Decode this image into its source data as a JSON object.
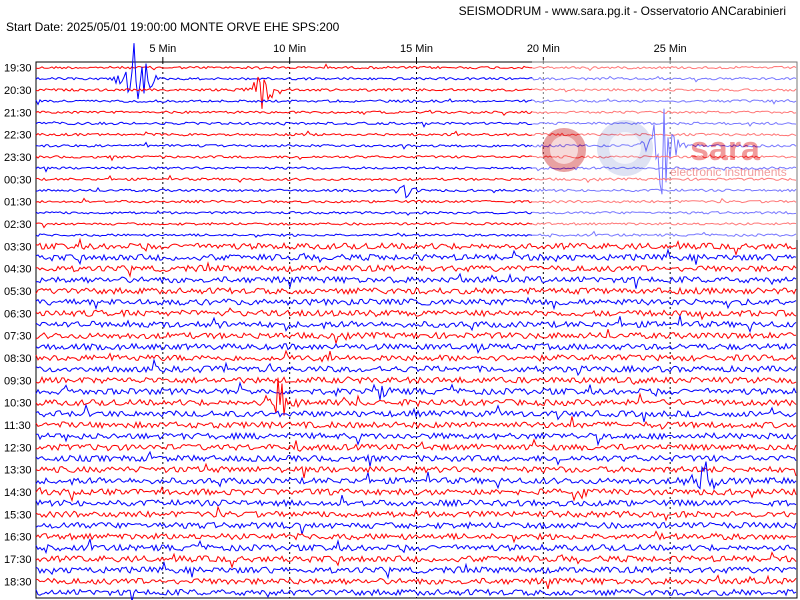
{
  "header": {
    "title": "SEISMODRUM - www.sara.pg.it - Osservatorio ANCarabinieri",
    "info": "Start Date: 2025/05/01 19:00:00 MONTE ORVE   EHE  SPS:200"
  },
  "watermark": {
    "brand": "sara",
    "tagline": "electronic instruments",
    "seal_text": "Italian Experimental Seismic Network"
  },
  "colors": {
    "red": "#ff0000",
    "blue": "#0000ff",
    "grid": "#000000"
  },
  "chart_data": {
    "type": "line",
    "x_unit": "minutes",
    "xlim": [
      0,
      30
    ],
    "x_ticks": [
      {
        "value": 5,
        "label": "5 Min"
      },
      {
        "value": 10,
        "label": "10 Min"
      },
      {
        "value": 15,
        "label": "15 Min"
      },
      {
        "value": 20,
        "label": "20 Min"
      },
      {
        "value": 25,
        "label": "25 Min"
      }
    ],
    "row_labels": [
      "19:30",
      "20:30",
      "21:30",
      "22:30",
      "23:30",
      "00:30",
      "01:30",
      "02:30",
      "03:30",
      "04:30",
      "05:30",
      "06:30",
      "07:30",
      "08:30",
      "09:30",
      "10:30",
      "11:30",
      "12:30",
      "13:30",
      "14:30",
      "15:30",
      "16:30",
      "17:30",
      "18:30"
    ],
    "traces_per_row": 2,
    "trace_colors": [
      "red",
      "blue"
    ],
    "events": [
      {
        "row": 1,
        "minute": 9.0,
        "amplitude": "large",
        "color": "red"
      },
      {
        "row": 0,
        "minute": 3.9,
        "amplitude": "very large",
        "color": "blue"
      },
      {
        "row": 5,
        "minute": 14.5,
        "amplitude": "medium",
        "color": "blue"
      },
      {
        "row": 11,
        "minute": 7.0,
        "amplitude": "medium",
        "color": "blue"
      },
      {
        "row": 14,
        "minute": 13.5,
        "amplitude": "medium",
        "color": "blue"
      },
      {
        "row": 15,
        "minute": 9.6,
        "amplitude": "large",
        "color": "red"
      },
      {
        "row": 3,
        "minute": 24.7,
        "amplitude": "very large",
        "color": "blue"
      },
      {
        "row": 18,
        "minute": 26.4,
        "amplitude": "large",
        "color": "blue"
      }
    ]
  }
}
